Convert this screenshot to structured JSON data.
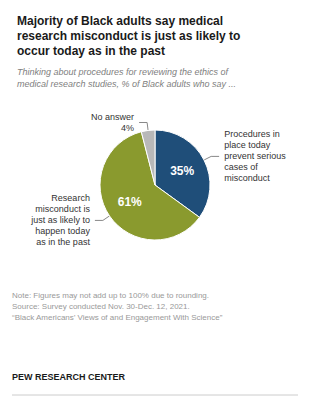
{
  "chart_data": {
    "type": "pie",
    "title": "Majority of Black adults say medical\nresearch misconduct is just as likely to\noccur today as in the past",
    "subtitle": "Thinking about procedures for reviewing the ethics of\nmedical research studies, % of Black adults who say ...",
    "categories": [
      "Procedures in\nplace today\nprevent serious\ncases of\nmisconduct",
      "Research\nmisconduct is\njust as likely to\nhappen today\nas in the past",
      "No answer"
    ],
    "values": [
      35,
      61,
      4
    ],
    "value_labels": [
      "35%",
      "61%",
      "4%"
    ],
    "data_labels": true,
    "colors": [
      "#1f4e79",
      "#8a9a2e",
      "#b8b8b8"
    ],
    "note": "Note: Figures may not add up to 100% due to rounding.\nSource: Survey conducted Nov. 30-Dec. 12, 2021.\n“Black Americans’ Views of and Engagement With Science”",
    "footer": "PEW RESEARCH CENTER"
  }
}
